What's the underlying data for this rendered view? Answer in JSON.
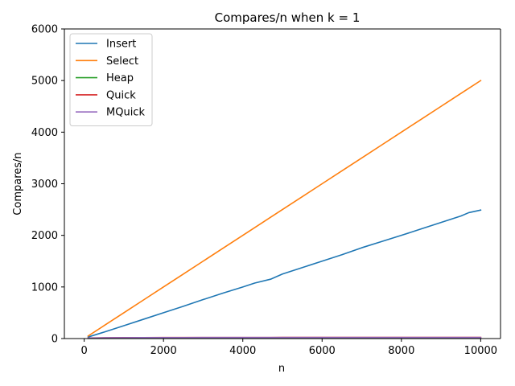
{
  "chart_data": {
    "type": "line",
    "title": "Compares/n when k = 1",
    "xlabel": "n",
    "ylabel": "Compares/n",
    "xlim": [
      -500,
      10500
    ],
    "ylim": [
      0,
      6000
    ],
    "xticks": [
      0,
      2000,
      4000,
      6000,
      8000,
      10000
    ],
    "yticks": [
      0,
      1000,
      2000,
      3000,
      4000,
      5000,
      6000
    ],
    "grid": false,
    "legend_position": "top-left",
    "x": [
      100,
      500,
      1000,
      1500,
      2000,
      2500,
      3000,
      3500,
      4000,
      4300,
      4700,
      5000,
      5500,
      6000,
      6500,
      7000,
      7500,
      8000,
      8500,
      9000,
      9500,
      9700,
      10000
    ],
    "series": [
      {
        "name": "Insert",
        "color": "#1f77b4",
        "values": [
          30,
          125,
          250,
          375,
          500,
          625,
          755,
          880,
          1000,
          1075,
          1150,
          1250,
          1375,
          1500,
          1625,
          1760,
          1880,
          2000,
          2125,
          2250,
          2375,
          2440,
          2490
        ]
      },
      {
        "name": "Select",
        "color": "#ff7f0e",
        "values": [
          50,
          250,
          500,
          750,
          1000,
          1250,
          1500,
          1750,
          2000,
          2150,
          2350,
          2500,
          2750,
          3000,
          3250,
          3500,
          3750,
          4000,
          4250,
          4500,
          4750,
          4850,
          5000
        ]
      },
      {
        "name": "Heap",
        "color": "#2ca02c",
        "values": [
          2,
          2,
          2,
          2,
          2,
          2,
          2,
          2,
          2,
          2,
          2,
          2,
          2,
          2,
          2,
          2,
          2,
          2,
          2,
          2,
          2,
          2,
          2
        ]
      },
      {
        "name": "Quick",
        "color": "#d62728",
        "values": [
          10,
          15,
          18,
          19,
          20,
          20,
          21,
          21,
          21,
          21,
          21,
          22,
          22,
          22,
          22,
          22,
          22,
          22,
          22,
          22,
          22,
          22,
          22
        ]
      },
      {
        "name": "MQuick",
        "color": "#9467bd",
        "values": [
          9,
          14,
          17,
          18,
          19,
          19,
          20,
          20,
          20,
          20,
          20,
          21,
          21,
          21,
          21,
          21,
          21,
          21,
          21,
          21,
          21,
          21,
          21
        ]
      }
    ]
  }
}
